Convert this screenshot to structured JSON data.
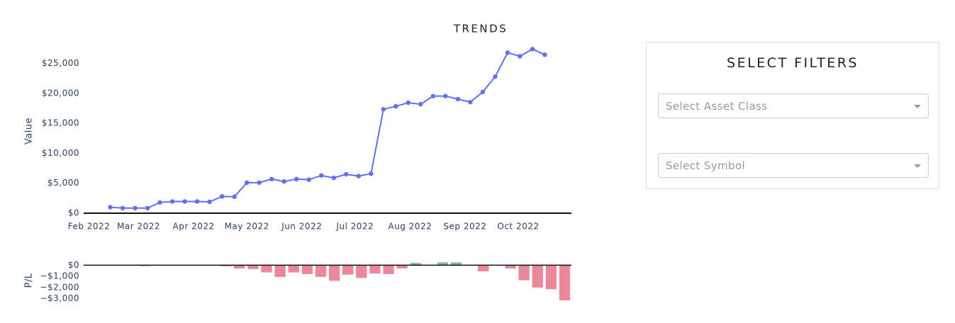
{
  "chart_data": [
    {
      "type": "line",
      "title": "TRENDS",
      "y_label": "Value",
      "color": "#636efa",
      "grid": false,
      "x": [
        "2022-02-13",
        "2022-02-20",
        "2022-02-27",
        "2022-03-06",
        "2022-03-13",
        "2022-03-20",
        "2022-03-27",
        "2022-04-03",
        "2022-04-10",
        "2022-04-17",
        "2022-04-24",
        "2022-05-01",
        "2022-05-08",
        "2022-05-15",
        "2022-05-22",
        "2022-05-29",
        "2022-06-05",
        "2022-06-12",
        "2022-06-19",
        "2022-06-26",
        "2022-07-03",
        "2022-07-10",
        "2022-07-17",
        "2022-07-24",
        "2022-07-31",
        "2022-08-07",
        "2022-08-14",
        "2022-08-21",
        "2022-08-28",
        "2022-09-04",
        "2022-09-11",
        "2022-09-18",
        "2022-09-25",
        "2022-10-02",
        "2022-10-09",
        "2022-10-16"
      ],
      "values": [
        1000,
        850,
        850,
        850,
        1800,
        1950,
        1950,
        1950,
        1900,
        2800,
        2750,
        5100,
        5100,
        5700,
        5300,
        5700,
        5600,
        6300,
        5900,
        6500,
        6200,
        6600,
        17350,
        17850,
        18450,
        18200,
        19550,
        19550,
        19050,
        18550,
        20250,
        22800,
        26800,
        26200,
        27400,
        26450
      ],
      "xlim": [
        "2022-01-29",
        "2022-10-31"
      ],
      "xticks": [
        {
          "value": "2022-02-01",
          "label": "Feb 2022"
        },
        {
          "value": "2022-03-01",
          "label": "Mar 2022"
        },
        {
          "value": "2022-04-01",
          "label": "Apr 2022"
        },
        {
          "value": "2022-05-01",
          "label": "May 2022"
        },
        {
          "value": "2022-06-01",
          "label": "Jun 2022"
        },
        {
          "value": "2022-07-01",
          "label": "Jul 2022"
        },
        {
          "value": "2022-08-01",
          "label": "Aug 2022"
        },
        {
          "value": "2022-09-01",
          "label": "Sep 2022"
        },
        {
          "value": "2022-10-01",
          "label": "Oct 2022"
        }
      ],
      "ylim": [
        0,
        28500
      ],
      "yticks": [
        {
          "value": 0,
          "label": "$0"
        },
        {
          "value": 5000,
          "label": "$5,000"
        },
        {
          "value": 10000,
          "label": "$10,000"
        },
        {
          "value": 15000,
          "label": "$15,000"
        },
        {
          "value": 20000,
          "label": "$20,000"
        },
        {
          "value": 25000,
          "label": "$25,000"
        }
      ]
    },
    {
      "type": "bar",
      "y_label": "P/L",
      "positive_color": "#8fb89a",
      "negative_color": "#ea8799",
      "categories": [
        null,
        null,
        null,
        null,
        null,
        null,
        null,
        null,
        null,
        null,
        null,
        null,
        null,
        null,
        null,
        null,
        null,
        null,
        null,
        null,
        null,
        null,
        null,
        null,
        null,
        null,
        null,
        null,
        null,
        null,
        null,
        null,
        null,
        null,
        null,
        null
      ],
      "values": [
        -20,
        -20,
        -20,
        -30,
        -80,
        -20,
        -20,
        -20,
        -40,
        -40,
        -100,
        -300,
        -350,
        -650,
        -1050,
        -650,
        -800,
        -1050,
        -1400,
        -850,
        -1150,
        -750,
        -800,
        -300,
        200,
        -20,
        250,
        250,
        -20,
        -550,
        -20,
        -300,
        -1350,
        -2000,
        -2150,
        -3150
      ],
      "ylim": [
        -3400,
        400
      ],
      "yticks": [
        {
          "value": 0,
          "label": "$0"
        },
        {
          "value": -1000,
          "label": "−$1,000"
        },
        {
          "value": -2000,
          "label": "−$2,000"
        },
        {
          "value": -3000,
          "label": "−$3,000"
        }
      ]
    }
  ],
  "filters": {
    "title": "SELECT FILTERS",
    "asset_class": "Select Asset Class",
    "symbol": "Select Symbol"
  }
}
